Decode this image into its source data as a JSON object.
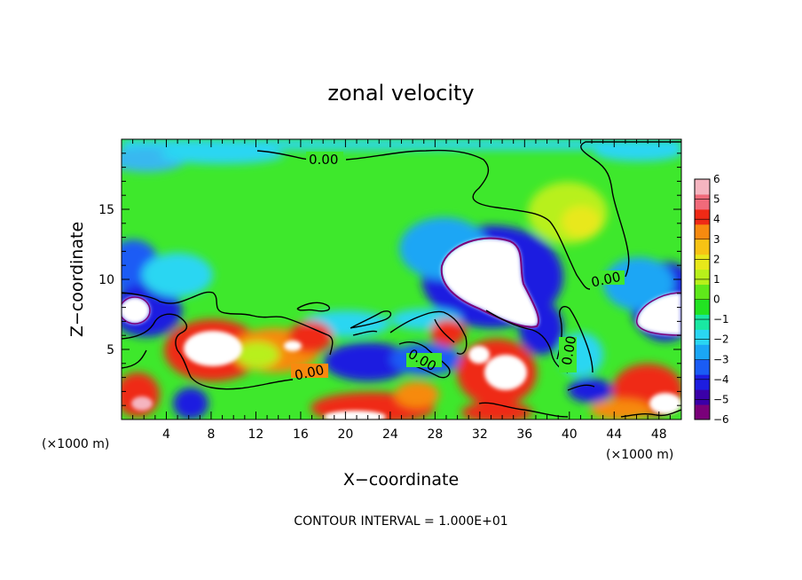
{
  "chart_data": {
    "type": "heatmap",
    "title": "zonal velocity",
    "xlabel": "X−coordinate",
    "ylabel": "Z−coordinate",
    "x_scale_left": "(×1000 m)",
    "x_scale_right": "(×1000 m)",
    "footer": "CONTOUR INTERVAL = 1.000E+01",
    "xlim": [
      0,
      50
    ],
    "ylim": [
      0,
      20
    ],
    "x_ticks": [
      4,
      8,
      12,
      16,
      20,
      24,
      28,
      32,
      36,
      40,
      44,
      48
    ],
    "y_ticks": [
      5,
      10,
      15
    ],
    "colorbar": {
      "ticks": [
        "6",
        "5",
        "4",
        "3",
        "2",
        "1",
        "0",
        "−1",
        "−2",
        "−3",
        "−4",
        "−5",
        "−6"
      ],
      "range": [
        -6,
        6
      ],
      "colors": [
        "#7a007a",
        "#3a00a8",
        "#1d1de0",
        "#1a5cf5",
        "#1aa6f5",
        "#2ad6f2",
        "#19e8a2",
        "#22e322",
        "#5fe81a",
        "#b8f01a",
        "#e8e81a",
        "#f7c314",
        "#f78a0f",
        "#ef2a16",
        "#f06a7a",
        "#f5b5c0"
      ]
    },
    "contour_labels": [
      "0.00",
      "0.00",
      "0.00",
      "0.00",
      "0.00",
      "0.00"
    ]
  }
}
